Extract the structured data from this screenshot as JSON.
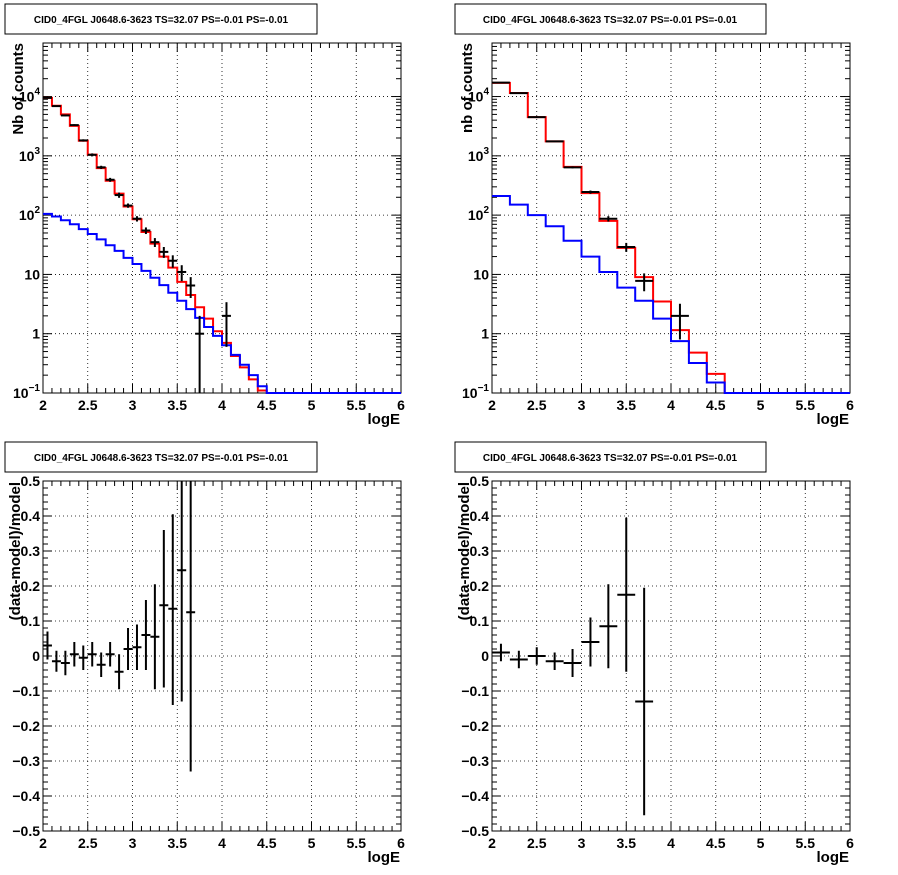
{
  "chart_data": [
    {
      "type": "histogram",
      "title": "CID0_4FGL J0648.6-3623 TS=32.07 PS=-0.01 PS=-0.01",
      "xlabel": "logE",
      "ylabel": "Nb of counts",
      "xlim": [
        2,
        6
      ],
      "ylim": [
        0.1,
        80000
      ],
      "log_y": true,
      "grid": true,
      "x_ticks": [
        "2",
        "2.5",
        "3",
        "3.5",
        "4",
        "4.5",
        "5",
        "5.5",
        "6"
      ],
      "y_ticks": [
        {
          "value": 0.1,
          "base": "10",
          "exp": "−1"
        },
        {
          "value": 1,
          "label": "1"
        },
        {
          "value": 10,
          "label": "10"
        },
        {
          "value": 100,
          "base": "10",
          "exp": "2"
        },
        {
          "value": 1000,
          "base": "10",
          "exp": "3"
        },
        {
          "value": 10000,
          "base": "10",
          "exp": "4"
        }
      ],
      "bin_edges": [
        2.0,
        2.1,
        2.2,
        2.3,
        2.4,
        2.5,
        2.6,
        2.7,
        2.8,
        2.9,
        3.0,
        3.1,
        3.2,
        3.3,
        3.4,
        3.5,
        3.6,
        3.7,
        3.8,
        3.9,
        4.0,
        4.1,
        4.2,
        4.3,
        4.4,
        4.5,
        4.6,
        4.7,
        4.8,
        4.9,
        5.0,
        5.1,
        5.2,
        5.3,
        5.4,
        5.5,
        5.6,
        5.7,
        5.8,
        5.9,
        6.0
      ],
      "series": [
        {
          "kind": "step",
          "color": "#ff0000",
          "values": [
            9500,
            7000,
            5000,
            3200,
            1800,
            1050,
            620,
            380,
            230,
            140,
            85,
            52,
            33,
            20,
            13,
            7.5,
            4.5,
            2.8,
            1.8,
            1.1,
            0.7,
            0.42,
            0.27,
            0.17,
            0.11,
            0.1,
            0.1,
            0.1,
            0.1,
            0.1,
            0.1,
            0.1,
            0.1,
            0.1,
            0.1,
            0.1,
            0.1,
            0.1,
            0.1,
            0.1
          ]
        },
        {
          "kind": "step",
          "color": "#0000ff",
          "values": [
            105,
            95,
            82,
            70,
            58,
            48,
            39,
            31,
            25,
            19,
            15,
            11.5,
            8.8,
            6.6,
            4.9,
            3.6,
            2.6,
            1.85,
            1.3,
            0.92,
            0.64,
            0.44,
            0.3,
            0.2,
            0.13,
            0.1,
            0.1,
            0.1,
            0.1,
            0.1,
            0.1,
            0.1,
            0.1,
            0.1,
            0.1,
            0.1,
            0.1,
            0.1,
            0.1,
            0.1
          ]
        },
        {
          "kind": "points",
          "color": "#000000",
          "points": [
            {
              "x": 2.05,
              "y": 9500,
              "lo": 9300,
              "hi": 9700
            },
            {
              "x": 2.15,
              "y": 6900,
              "lo": 6750,
              "hi": 7050
            },
            {
              "x": 2.25,
              "y": 4800,
              "lo": 4660,
              "hi": 4940
            },
            {
              "x": 2.35,
              "y": 3300,
              "lo": 3190,
              "hi": 3410
            },
            {
              "x": 2.45,
              "y": 1820,
              "lo": 1740,
              "hi": 1900
            },
            {
              "x": 2.55,
              "y": 1040,
              "lo": 980,
              "hi": 1100
            },
            {
              "x": 2.65,
              "y": 640,
              "lo": 600,
              "hi": 680
            },
            {
              "x": 2.75,
              "y": 395,
              "lo": 365,
              "hi": 425
            },
            {
              "x": 2.85,
              "y": 218,
              "lo": 196,
              "hi": 240
            },
            {
              "x": 2.95,
              "y": 145,
              "lo": 133,
              "hi": 157
            },
            {
              "x": 3.05,
              "y": 87,
              "lo": 78,
              "hi": 96
            },
            {
              "x": 3.15,
              "y": 55,
              "lo": 48,
              "hi": 62
            },
            {
              "x": 3.25,
              "y": 35,
              "lo": 29,
              "hi": 41
            },
            {
              "x": 3.35,
              "y": 24,
              "lo": 19,
              "hi": 29
            },
            {
              "x": 3.45,
              "y": 17,
              "lo": 13,
              "hi": 21
            },
            {
              "x": 3.55,
              "y": 11,
              "lo": 7.7,
              "hi": 14.3
            },
            {
              "x": 3.65,
              "y": 6.5,
              "lo": 4.0,
              "hi": 9.0
            },
            {
              "x": 3.75,
              "y": 1.0,
              "lo": 0.1,
              "hi": 2.0
            },
            {
              "x": 4.05,
              "y": 2.0,
              "lo": 0.6,
              "hi": 3.4
            }
          ]
        }
      ]
    },
    {
      "type": "histogram",
      "title": "CID0_4FGL J0648.6-3623 TS=32.07 PS=-0.01 PS=-0.01",
      "xlabel": "logE",
      "ylabel": "nb of counts",
      "xlim": [
        2,
        6
      ],
      "ylim": [
        0.1,
        80000
      ],
      "log_y": true,
      "grid": true,
      "x_ticks": [
        "2",
        "2.5",
        "3",
        "3.5",
        "4",
        "4.5",
        "5",
        "5.5",
        "6"
      ],
      "y_ticks": [
        {
          "value": 0.1,
          "base": "10",
          "exp": "−1"
        },
        {
          "value": 1,
          "label": "1"
        },
        {
          "value": 10,
          "label": "10"
        },
        {
          "value": 100,
          "base": "10",
          "exp": "2"
        },
        {
          "value": 1000,
          "base": "10",
          "exp": "3"
        },
        {
          "value": 10000,
          "base": "10",
          "exp": "4"
        }
      ],
      "bin_edges": [
        2.0,
        2.2,
        2.4,
        2.6,
        2.8,
        3.0,
        3.2,
        3.4,
        3.6,
        3.8,
        4.0,
        4.2,
        4.4,
        4.6,
        4.8,
        5.0,
        5.2,
        5.4,
        5.6,
        5.8,
        6.0
      ],
      "series": [
        {
          "kind": "step",
          "color": "#ff0000",
          "values": [
            17000,
            11500,
            4500,
            1750,
            650,
            235,
            80,
            28,
            9,
            3.5,
            1.15,
            0.48,
            0.21,
            0.1,
            0.1,
            0.1,
            0.1,
            0.1,
            0.1,
            0.1
          ]
        },
        {
          "kind": "step",
          "color": "#0000ff",
          "values": [
            210,
            150,
            100,
            65,
            37,
            20,
            11,
            6,
            3.6,
            1.8,
            0.75,
            0.32,
            0.15,
            0.1,
            0.1,
            0.1,
            0.1,
            0.1,
            0.1,
            0.1
          ]
        },
        {
          "kind": "points",
          "color": "#000000",
          "points": [
            {
              "x": 2.1,
              "y": 17200,
              "lo": 17000,
              "hi": 17400
            },
            {
              "x": 2.3,
              "y": 11400,
              "lo": 11200,
              "hi": 11600
            },
            {
              "x": 2.5,
              "y": 4500,
              "lo": 4430,
              "hi": 4570
            },
            {
              "x": 2.7,
              "y": 1750,
              "lo": 1710,
              "hi": 1790
            },
            {
              "x": 2.9,
              "y": 640,
              "lo": 615,
              "hi": 665
            },
            {
              "x": 3.1,
              "y": 245,
              "lo": 230,
              "hi": 260
            },
            {
              "x": 3.3,
              "y": 87,
              "lo": 78,
              "hi": 96
            },
            {
              "x": 3.5,
              "y": 29,
              "lo": 24,
              "hi": 34
            },
            {
              "x": 3.7,
              "y": 7.8,
              "lo": 5.2,
              "hi": 10.4
            },
            {
              "x": 4.1,
              "y": 2.0,
              "lo": 0.8,
              "hi": 3.2
            }
          ]
        }
      ]
    },
    {
      "type": "scatter",
      "title": "CID0_4FGL J0648.6-3623 TS=32.07 PS=-0.01 PS=-0.01",
      "xlabel": "logE",
      "ylabel": "(data-model)/model",
      "xlim": [
        2,
        6
      ],
      "ylim": [
        -0.5,
        0.5
      ],
      "log_y": false,
      "grid": true,
      "x_ticks": [
        "2",
        "2.5",
        "3",
        "3.5",
        "4",
        "4.5",
        "5",
        "5.5",
        "6"
      ],
      "y_ticks": [
        {
          "value": -0.5,
          "label": "−0.5"
        },
        {
          "value": -0.4,
          "label": "−0.4"
        },
        {
          "value": -0.3,
          "label": "−0.3"
        },
        {
          "value": -0.2,
          "label": "−0.2"
        },
        {
          "value": -0.1,
          "label": "−0.1"
        },
        {
          "value": 0,
          "label": "0"
        },
        {
          "value": 0.1,
          "label": "0.1"
        },
        {
          "value": 0.2,
          "label": "0.2"
        },
        {
          "value": 0.3,
          "label": "0.3"
        },
        {
          "value": 0.4,
          "label": "0.4"
        },
        {
          "value": 0.5,
          "label": "0.5"
        }
      ],
      "bin_width": 0.1,
      "series": [
        {
          "kind": "points",
          "color": "#000000",
          "points": [
            {
              "x": 2.05,
              "y": 0.03,
              "lo": -0.01,
              "hi": 0.07
            },
            {
              "x": 2.15,
              "y": -0.015,
              "lo": -0.045,
              "hi": 0.015
            },
            {
              "x": 2.25,
              "y": -0.02,
              "lo": -0.055,
              "hi": 0.015
            },
            {
              "x": 2.35,
              "y": 0.005,
              "lo": -0.03,
              "hi": 0.04
            },
            {
              "x": 2.45,
              "y": -0.005,
              "lo": -0.04,
              "hi": 0.03
            },
            {
              "x": 2.55,
              "y": 0.005,
              "lo": -0.03,
              "hi": 0.04
            },
            {
              "x": 2.65,
              "y": -0.025,
              "lo": -0.06,
              "hi": 0.01
            },
            {
              "x": 2.75,
              "y": 0.005,
              "lo": -0.03,
              "hi": 0.04
            },
            {
              "x": 2.85,
              "y": -0.045,
              "lo": -0.095,
              "hi": 0.005
            },
            {
              "x": 2.95,
              "y": 0.02,
              "lo": -0.04,
              "hi": 0.08
            },
            {
              "x": 3.05,
              "y": 0.025,
              "lo": -0.04,
              "hi": 0.09
            },
            {
              "x": 3.15,
              "y": 0.06,
              "lo": -0.04,
              "hi": 0.16
            },
            {
              "x": 3.25,
              "y": 0.055,
              "lo": -0.095,
              "hi": 0.205
            },
            {
              "x": 3.35,
              "y": 0.145,
              "lo": -0.09,
              "hi": 0.36
            },
            {
              "x": 3.45,
              "y": 0.135,
              "lo": -0.14,
              "hi": 0.405
            },
            {
              "x": 3.55,
              "y": 0.245,
              "lo": -0.13,
              "hi": 0.5
            },
            {
              "x": 3.65,
              "y": 0.125,
              "lo": -0.33,
              "hi": 0.5
            }
          ]
        }
      ]
    },
    {
      "type": "scatter",
      "title": "CID0_4FGL J0648.6-3623 TS=32.07 PS=-0.01 PS=-0.01",
      "xlabel": "logE",
      "ylabel": "(data-model)/model",
      "xlim": [
        2,
        6
      ],
      "ylim": [
        -0.5,
        0.5
      ],
      "log_y": false,
      "grid": true,
      "x_ticks": [
        "2",
        "2.5",
        "3",
        "3.5",
        "4",
        "4.5",
        "5",
        "5.5",
        "6"
      ],
      "y_ticks": [
        {
          "value": -0.5,
          "label": "−0.5"
        },
        {
          "value": -0.4,
          "label": "−0.4"
        },
        {
          "value": -0.3,
          "label": "−0.3"
        },
        {
          "value": -0.2,
          "label": "−0.2"
        },
        {
          "value": -0.1,
          "label": "−0.1"
        },
        {
          "value": 0,
          "label": "0"
        },
        {
          "value": 0.1,
          "label": "0.1"
        },
        {
          "value": 0.2,
          "label": "0.2"
        },
        {
          "value": 0.3,
          "label": "0.3"
        },
        {
          "value": 0.4,
          "label": "0.4"
        },
        {
          "value": 0.5,
          "label": "0.5"
        }
      ],
      "bin_width": 0.2,
      "series": [
        {
          "kind": "points",
          "color": "#000000",
          "points": [
            {
              "x": 2.1,
              "y": 0.01,
              "lo": -0.015,
              "hi": 0.035
            },
            {
              "x": 2.3,
              "y": -0.01,
              "lo": -0.035,
              "hi": 0.015
            },
            {
              "x": 2.5,
              "y": 0.0,
              "lo": -0.025,
              "hi": 0.025
            },
            {
              "x": 2.7,
              "y": -0.015,
              "lo": -0.04,
              "hi": 0.01
            },
            {
              "x": 2.9,
              "y": -0.02,
              "lo": -0.06,
              "hi": 0.02
            },
            {
              "x": 3.1,
              "y": 0.04,
              "lo": -0.03,
              "hi": 0.11
            },
            {
              "x": 3.3,
              "y": 0.085,
              "lo": -0.035,
              "hi": 0.205
            },
            {
              "x": 3.5,
              "y": 0.175,
              "lo": -0.045,
              "hi": 0.395
            },
            {
              "x": 3.7,
              "y": -0.13,
              "lo": -0.455,
              "hi": 0.195
            }
          ]
        }
      ]
    }
  ]
}
